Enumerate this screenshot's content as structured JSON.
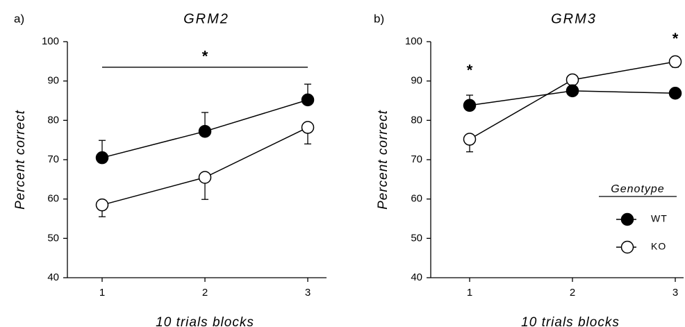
{
  "chart_data": [
    {
      "type": "line",
      "panel_label": "a)",
      "title": "GRM2",
      "xlabel": "10 trials blocks",
      "ylabel": "Percent correct",
      "ylim": [
        40,
        100
      ],
      "yticks": [
        40,
        50,
        60,
        70,
        80,
        90,
        100
      ],
      "categories": [
        "1",
        "2",
        "3"
      ],
      "series": [
        {
          "name": "WT",
          "values": [
            70.5,
            77.2,
            85.2
          ],
          "errors": [
            4.4,
            4.8,
            4.0
          ],
          "marker": "filled"
        },
        {
          "name": "KO",
          "values": [
            58.5,
            65.5,
            78.2
          ],
          "errors": [
            3.0,
            5.6,
            4.2
          ],
          "marker": "open"
        }
      ],
      "significance": [
        {
          "type": "bracket",
          "from": "1",
          "to": "3",
          "y": 93.5,
          "label": "*"
        }
      ],
      "grid": false
    },
    {
      "type": "line",
      "panel_label": "b)",
      "title": "GRM3",
      "xlabel": "10 trials blocks",
      "ylabel": "Percent correct",
      "ylim": [
        40,
        100
      ],
      "yticks": [
        40,
        50,
        60,
        70,
        80,
        90,
        100
      ],
      "categories": [
        "1",
        "2",
        "3"
      ],
      "series": [
        {
          "name": "WT",
          "values": [
            83.8,
            87.5,
            86.9
          ],
          "errors": [
            2.6,
            1.5,
            1.2
          ],
          "marker": "filled"
        },
        {
          "name": "KO",
          "values": [
            75.2,
            90.3,
            94.9
          ],
          "errors": [
            3.2,
            2.4,
            1.4
          ],
          "marker": "open"
        }
      ],
      "significance": [
        {
          "type": "star",
          "at": "1",
          "y": 92.5,
          "label": "*"
        },
        {
          "type": "star",
          "at": "3",
          "y": 100.5,
          "label": "*"
        }
      ],
      "legend": {
        "title": "Genotype",
        "position": "lower-right",
        "entries": [
          {
            "label": "WT",
            "marker": "filled"
          },
          {
            "label": "KO",
            "marker": "open"
          }
        ]
      },
      "grid": false
    }
  ]
}
